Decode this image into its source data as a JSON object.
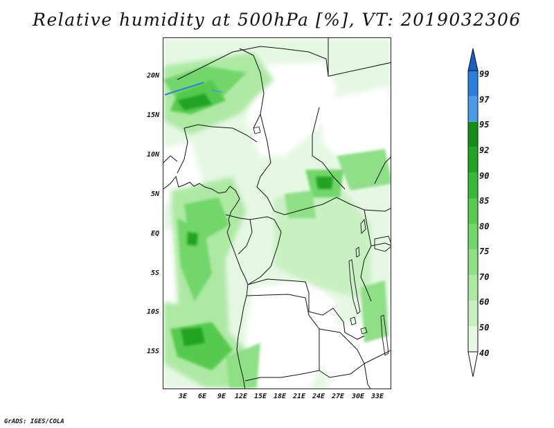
{
  "title": "Relative humidity at 500hPa [%], VT: 2019032306",
  "credit": "GrADS: IGES/COLA",
  "map": {
    "lat_labels": [
      "20N",
      "15N",
      "10N",
      "5N",
      "EQ",
      "5S",
      "10S",
      "15S"
    ],
    "lon_labels": [
      "3E",
      "6E",
      "9E",
      "12E",
      "15E",
      "18E",
      "21E",
      "24E",
      "27E",
      "30E",
      "33E"
    ]
  },
  "colorbar": {
    "levels": [
      "40",
      "50",
      "60",
      "70",
      "75",
      "80",
      "85",
      "90",
      "92",
      "95",
      "97",
      "99"
    ],
    "colors": [
      "#e6f8e4",
      "#c9f0c3",
      "#aee9a4",
      "#8fdf87",
      "#72d66b",
      "#57ca50",
      "#3ab839",
      "#22a323",
      "#138f17",
      "#4a9be8",
      "#2a7fdc",
      "#1b5fc4"
    ]
  }
}
